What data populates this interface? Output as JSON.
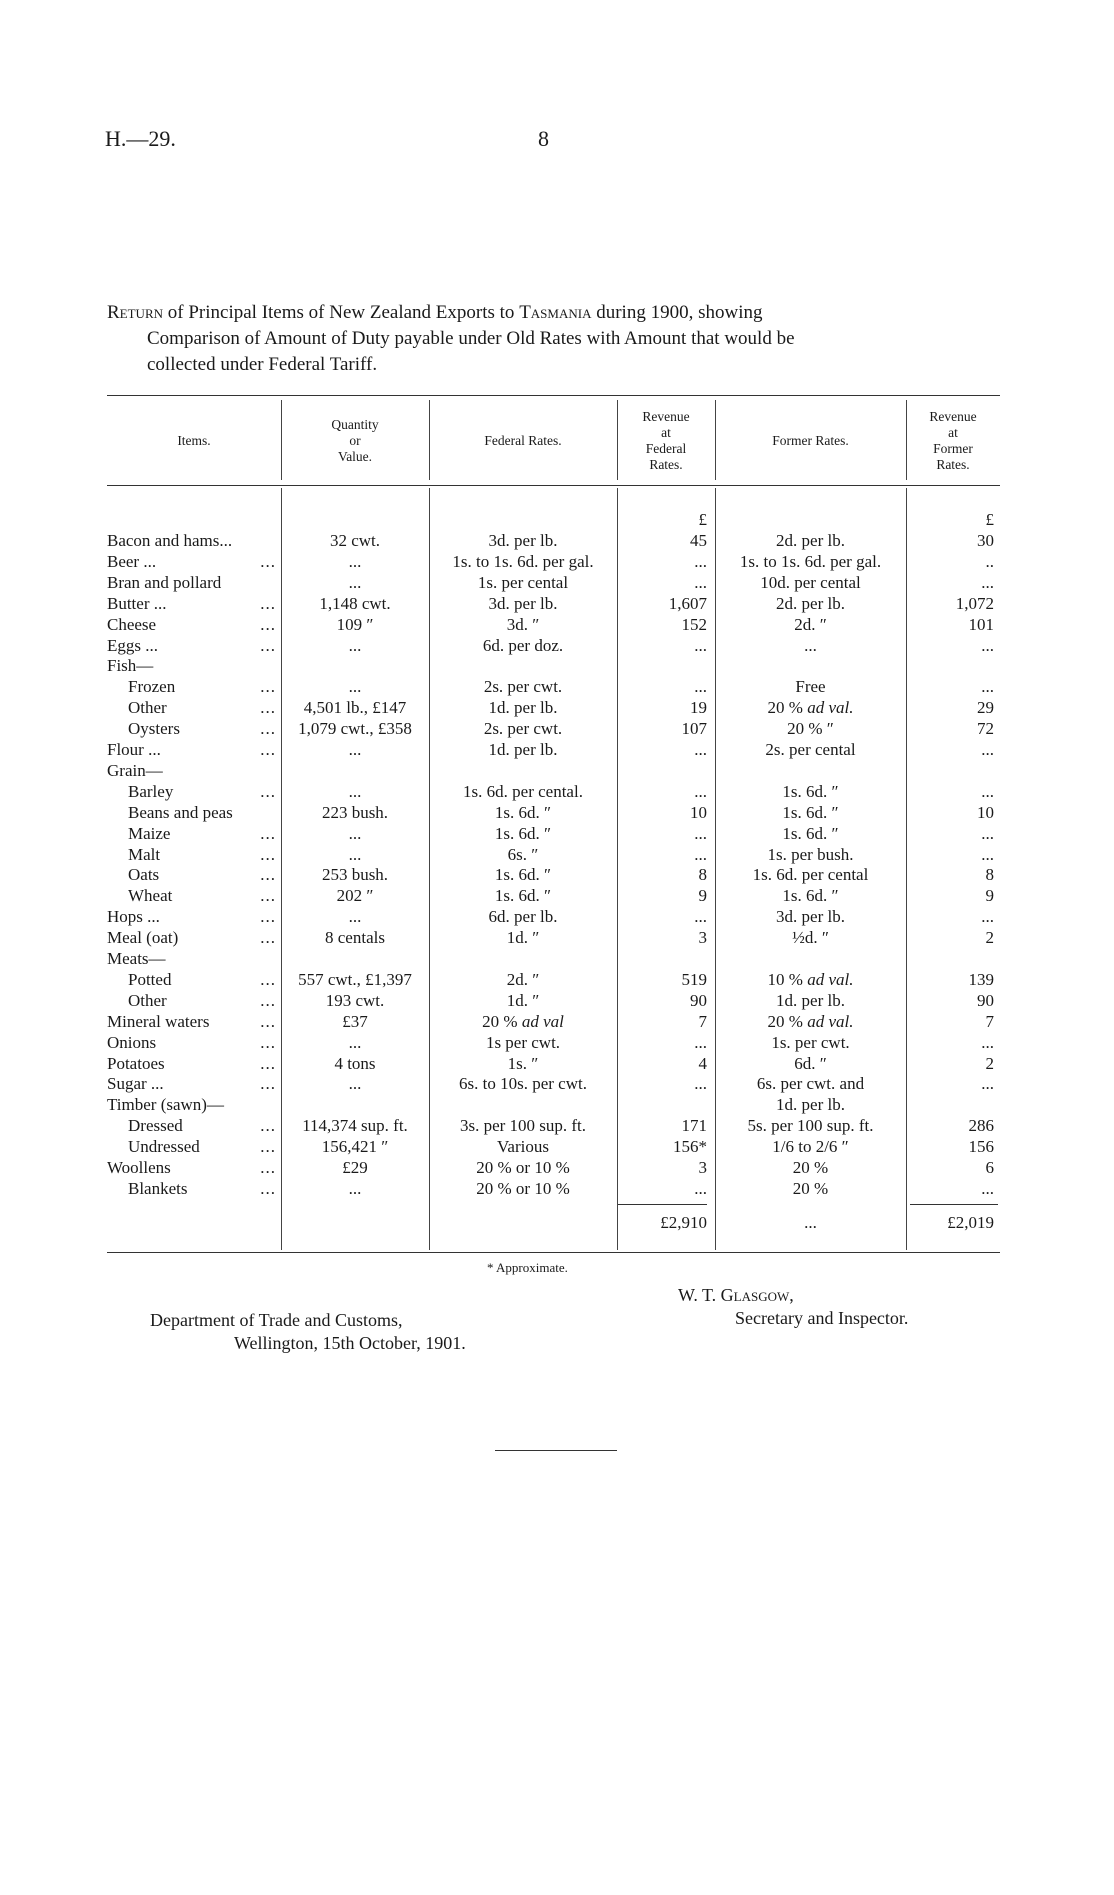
{
  "header": {
    "ref": "H.—29.",
    "page": "8"
  },
  "title": {
    "lead": "Return",
    "line1_rest": " of Principal Items of New Zealand Exports to ",
    "country": "Tasmania",
    "line1_end": " during 1900, showing",
    "line2": "Comparison of Amount of Duty payable under Old Rates with Amount that would be",
    "line3": "collected under Federal Tariff."
  },
  "columns": {
    "items": "Items.",
    "qty": [
      "Quantity",
      "or",
      "Value."
    ],
    "fed": "Federal Rates.",
    "rev_fed": [
      "Revenue",
      "at",
      "Federal",
      "Rates."
    ],
    "former": "Former Rates.",
    "rev_former": [
      "Revenue",
      "at",
      "Former",
      "Rates."
    ]
  },
  "units": {
    "rev_fed": "£",
    "rev_former": "£"
  },
  "rows": [
    {
      "item": "Bacon and hams...",
      "indent": false,
      "leader": "",
      "qty": "32 cwt.",
      "fed": "3d. per lb.",
      "rev_fed": "45",
      "former": "2d. per lb.",
      "rev_former": "30"
    },
    {
      "item": "Beer ...",
      "indent": false,
      "leader": "...",
      "qty": "...",
      "fed": "1s. to 1s. 6d. per gal.",
      "rev_fed": "...",
      "former": "1s. to 1s. 6d. per gal.",
      "rev_former": ".."
    },
    {
      "item": "Bran and pollard",
      "indent": false,
      "leader": "",
      "qty": "...",
      "fed": "1s. per cental",
      "rev_fed": "...",
      "former": "10d. per cental",
      "rev_former": "..."
    },
    {
      "item": "Butter ...",
      "indent": false,
      "leader": "...",
      "qty": "1,148 cwt.",
      "fed": "3d. per lb.",
      "rev_fed": "1,607",
      "former": "2d. per lb.",
      "rev_former": "1,072"
    },
    {
      "item": "Cheese",
      "indent": false,
      "leader": "...",
      "qty": "109   ″",
      "fed": "3d.     ″",
      "rev_fed": "152",
      "former": "2d.     ″",
      "rev_former": "101"
    },
    {
      "item": "Eggs ...",
      "indent": false,
      "leader": "...",
      "qty": "...",
      "fed": "6d. per doz.",
      "rev_fed": "...",
      "former": "...",
      "rev_former": "..."
    },
    {
      "item": "Fish—",
      "indent": false,
      "leader": "",
      "qty": "",
      "fed": "",
      "rev_fed": "",
      "former": "",
      "rev_former": ""
    },
    {
      "item": "Frozen",
      "indent": true,
      "leader": "...",
      "qty": "...",
      "fed": "2s. per cwt.",
      "rev_fed": "...",
      "former": "Free",
      "rev_former": "..."
    },
    {
      "item": "Other",
      "indent": true,
      "leader": "...",
      "qty": "4,501 lb., £147",
      "fed": "1d. per lb.",
      "rev_fed": "19",
      "former": "20 % ad val.",
      "rev_former": "29"
    },
    {
      "item": "Oysters",
      "indent": true,
      "leader": "...",
      "qty": "1,079 cwt., £358",
      "fed": "2s. per cwt.",
      "rev_fed": "107",
      "former": "20 %      ″",
      "rev_former": "72"
    },
    {
      "item": "Flour ...",
      "indent": false,
      "leader": "...",
      "qty": "...",
      "fed": "1d. per lb.",
      "rev_fed": "...",
      "former": "2s. per cental",
      "rev_former": "..."
    },
    {
      "item": "Grain—",
      "indent": false,
      "leader": "",
      "qty": "",
      "fed": "",
      "rev_fed": "",
      "former": "",
      "rev_former": ""
    },
    {
      "item": "Barley",
      "indent": true,
      "leader": "...",
      "qty": "...",
      "fed": "1s. 6d. per cental.",
      "rev_fed": "...",
      "former": "1s. 6d.        ″",
      "rev_former": "..."
    },
    {
      "item": "Beans and peas",
      "indent": true,
      "leader": "",
      "qty": "223 bush.",
      "fed": "1s. 6d.        ″",
      "rev_fed": "10",
      "former": "1s. 6d.        ″",
      "rev_former": "10"
    },
    {
      "item": "Maize",
      "indent": true,
      "leader": "...",
      "qty": "...",
      "fed": "1s. 6d.        ″",
      "rev_fed": "...",
      "former": "1s. 6d.        ″",
      "rev_former": "..."
    },
    {
      "item": "Malt",
      "indent": true,
      "leader": "...",
      "qty": "...",
      "fed": "6s.              ″",
      "rev_fed": "...",
      "former": "1s. per bush.",
      "rev_former": "..."
    },
    {
      "item": "Oats",
      "indent": true,
      "leader": "...",
      "qty": "253 bush.",
      "fed": "1s. 6d.        ″",
      "rev_fed": "8",
      "former": "1s. 6d. per cental",
      "rev_former": "8"
    },
    {
      "item": "Wheat",
      "indent": true,
      "leader": "...",
      "qty": "202   ″",
      "fed": "1s. 6d.        ″",
      "rev_fed": "9",
      "former": "1s. 6d.        ″",
      "rev_former": "9"
    },
    {
      "item": "Hops ...",
      "indent": false,
      "leader": "...",
      "qty": "...",
      "fed": "6d. per lb.",
      "rev_fed": "...",
      "former": "3d. per lb.",
      "rev_former": "..."
    },
    {
      "item": "Meal (oat)",
      "indent": false,
      "leader": "...",
      "qty": "8 centals",
      "fed": "1d.      ″",
      "rev_fed": "3",
      "former": "½d.      ″",
      "rev_former": "2"
    },
    {
      "item": "Meats—",
      "indent": false,
      "leader": "",
      "qty": "",
      "fed": "",
      "rev_fed": "",
      "former": "",
      "rev_former": ""
    },
    {
      "item": "Potted",
      "indent": true,
      "leader": "...",
      "qty": "557 cwt., £1,397",
      "fed": "2d.      ″",
      "rev_fed": "519",
      "former": "10 % ad val.",
      "rev_former": "139"
    },
    {
      "item": "Other",
      "indent": true,
      "leader": "...",
      "qty": "193 cwt.",
      "fed": "1d.      ″",
      "rev_fed": "90",
      "former": "1d. per lb.",
      "rev_former": "90"
    },
    {
      "item": "Mineral waters",
      "indent": false,
      "leader": "...",
      "qty": "£37",
      "fed": "20 % ad val",
      "rev_fed": "7",
      "former": "20 % ad val.",
      "rev_former": "7"
    },
    {
      "item": "Onions",
      "indent": false,
      "leader": "...",
      "qty": "...",
      "fed": "1s  per cwt.",
      "rev_fed": "...",
      "former": "1s. per cwt.",
      "rev_former": "..."
    },
    {
      "item": "Potatoes",
      "indent": false,
      "leader": "...",
      "qty": "4 tons",
      "fed": "1s.      ″",
      "rev_fed": "4",
      "former": "6d.      ″",
      "rev_former": "2"
    },
    {
      "item": "Sugar ...",
      "indent": false,
      "leader": "...",
      "qty": "...",
      "fed": "6s. to 10s. per cwt.",
      "rev_fed": "...",
      "former": "6s. per cwt. and",
      "rev_former": "..."
    },
    {
      "item": "Timber (sawn)—",
      "indent": false,
      "leader": "",
      "qty": "",
      "fed": "",
      "rev_fed": "",
      "former": "1d. per lb.",
      "rev_former": ""
    },
    {
      "item": "Dressed",
      "indent": true,
      "leader": "...",
      "qty": "114,374 sup. ft.",
      "fed": "3s. per 100 sup. ft.",
      "rev_fed": "171",
      "former": "5s. per 100 sup. ft.",
      "rev_former": "286"
    },
    {
      "item": "Undressed",
      "indent": true,
      "leader": "...",
      "qty": "156,421     ″",
      "fed": "Various",
      "rev_fed": "156*",
      "former": "1/6 to 2/6      ″",
      "rev_former": "156"
    },
    {
      "item": "Woollens",
      "indent": false,
      "leader": "...",
      "qty": "£29",
      "fed": "20 % or 10 %",
      "rev_fed": "3",
      "former": "20 %",
      "rev_former": "6"
    },
    {
      "item": "Blankets",
      "indent": true,
      "leader": "...",
      "qty": "...",
      "fed": "20 % or 10 %",
      "rev_fed": "...",
      "former": "20 %",
      "rev_former": "..."
    }
  ],
  "totals": {
    "rev_fed": "£2,910",
    "former": "...",
    "rev_former": "£2,019"
  },
  "footnote": "* Approximate.",
  "signature": {
    "name_initials": "W. T. ",
    "name": "Glasgow,",
    "title": "Secretary and Inspector."
  },
  "dept": {
    "line1": "Department of Trade and Customs,",
    "line2": "Wellington, 15th October, 1901."
  }
}
